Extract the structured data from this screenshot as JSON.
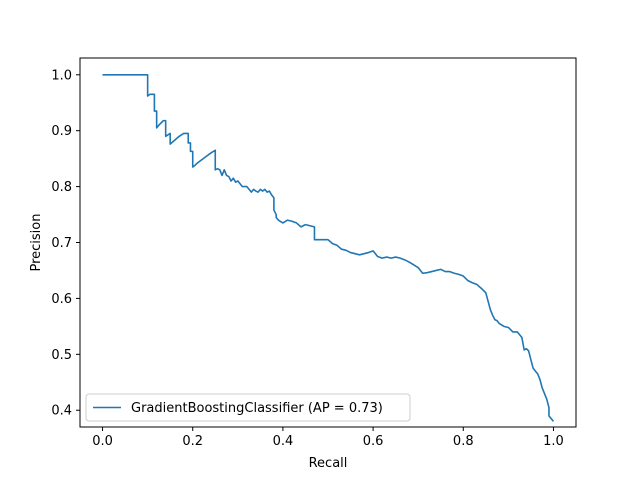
{
  "chart_data": {
    "type": "line",
    "title": "",
    "xlabel": "Recall",
    "ylabel": "Precision",
    "xlim": [
      -0.05,
      1.05
    ],
    "ylim": [
      0.37,
      1.03
    ],
    "x_ticks": [
      0.0,
      0.2,
      0.4,
      0.6,
      0.8,
      1.0
    ],
    "x_tick_labels": [
      "0.0",
      "0.2",
      "0.4",
      "0.6",
      "0.8",
      "1.0"
    ],
    "y_ticks": [
      0.4,
      0.5,
      0.6,
      0.7,
      0.8,
      0.9,
      1.0
    ],
    "y_tick_labels": [
      "0.4",
      "0.5",
      "0.6",
      "0.7",
      "0.8",
      "0.9",
      "1.0"
    ],
    "grid": false,
    "legend_position": "bottom-left",
    "series": [
      {
        "name": "GradientBoostingClassifier (AP = 0.73)",
        "color": "#1f77b4",
        "x": [
          0.0,
          0.1,
          0.1,
          0.105,
          0.115,
          0.115,
          0.12,
          0.12,
          0.125,
          0.135,
          0.14,
          0.14,
          0.15,
          0.15,
          0.17,
          0.18,
          0.19,
          0.19,
          0.195,
          0.195,
          0.2,
          0.2,
          0.205,
          0.21,
          0.22,
          0.23,
          0.24,
          0.25,
          0.25,
          0.255,
          0.26,
          0.265,
          0.27,
          0.275,
          0.28,
          0.285,
          0.29,
          0.295,
          0.3,
          0.305,
          0.31,
          0.32,
          0.33,
          0.335,
          0.34,
          0.345,
          0.35,
          0.355,
          0.36,
          0.365,
          0.37,
          0.375,
          0.38,
          0.38,
          0.385,
          0.385,
          0.39,
          0.4,
          0.41,
          0.42,
          0.43,
          0.44,
          0.45,
          0.46,
          0.47,
          0.47,
          0.49,
          0.5,
          0.51,
          0.52,
          0.53,
          0.54,
          0.55,
          0.56,
          0.57,
          0.58,
          0.59,
          0.6,
          0.61,
          0.62,
          0.63,
          0.64,
          0.65,
          0.66,
          0.67,
          0.68,
          0.69,
          0.7,
          0.71,
          0.72,
          0.73,
          0.74,
          0.75,
          0.76,
          0.77,
          0.78,
          0.79,
          0.8,
          0.81,
          0.82,
          0.83,
          0.84,
          0.85,
          0.86,
          0.865,
          0.87,
          0.875,
          0.88,
          0.89,
          0.9,
          0.91,
          0.92,
          0.93,
          0.935,
          0.94,
          0.945,
          0.95,
          0.955,
          0.96,
          0.965,
          0.97,
          0.975,
          0.98,
          0.985,
          0.99,
          0.99,
          0.995,
          1.0
        ],
        "y": [
          1.0,
          1.0,
          0.962,
          0.965,
          0.965,
          0.935,
          0.935,
          0.905,
          0.91,
          0.918,
          0.918,
          0.89,
          0.895,
          0.876,
          0.89,
          0.895,
          0.895,
          0.878,
          0.878,
          0.863,
          0.863,
          0.835,
          0.838,
          0.842,
          0.848,
          0.854,
          0.86,
          0.865,
          0.83,
          0.832,
          0.83,
          0.82,
          0.83,
          0.82,
          0.818,
          0.81,
          0.815,
          0.808,
          0.81,
          0.805,
          0.8,
          0.8,
          0.79,
          0.795,
          0.792,
          0.79,
          0.795,
          0.792,
          0.795,
          0.79,
          0.792,
          0.785,
          0.78,
          0.758,
          0.75,
          0.745,
          0.74,
          0.735,
          0.74,
          0.738,
          0.735,
          0.728,
          0.732,
          0.73,
          0.728,
          0.705,
          0.705,
          0.705,
          0.698,
          0.695,
          0.688,
          0.686,
          0.682,
          0.68,
          0.678,
          0.68,
          0.682,
          0.685,
          0.675,
          0.672,
          0.674,
          0.672,
          0.674,
          0.672,
          0.669,
          0.665,
          0.66,
          0.655,
          0.645,
          0.646,
          0.648,
          0.65,
          0.652,
          0.648,
          0.648,
          0.645,
          0.643,
          0.64,
          0.632,
          0.628,
          0.625,
          0.618,
          0.61,
          0.58,
          0.57,
          0.562,
          0.56,
          0.555,
          0.55,
          0.548,
          0.54,
          0.54,
          0.53,
          0.508,
          0.51,
          0.506,
          0.49,
          0.475,
          0.47,
          0.465,
          0.455,
          0.44,
          0.43,
          0.42,
          0.405,
          0.39,
          0.385,
          0.38
        ]
      }
    ]
  }
}
